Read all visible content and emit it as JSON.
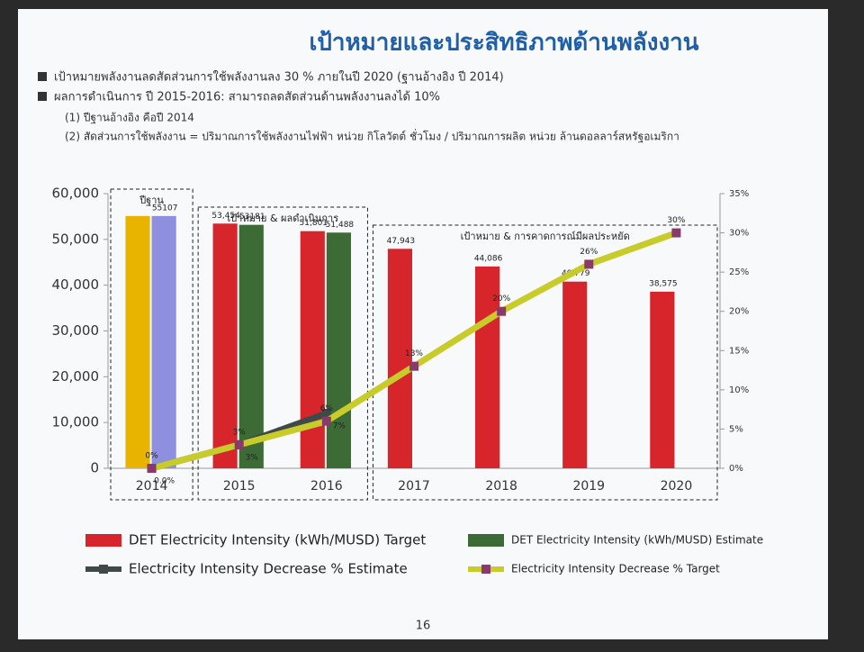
{
  "title": "เป้าหมายและประสิทธิภาพด้านพลังงาน",
  "bullets": [
    "เป้าหมายพลังงานลดสัดส่วนการใช้พลังงานลง 30 % ภายในปี 2020 (ฐานอ้างอิง ปี 2014)",
    "ผลการดำเนินการ ปี 2015-2016: สามารถลดสัดส่วนด้านพลังงานลงได้ 10%"
  ],
  "notes": [
    "(1) ปีฐานอ้างอิง คือปี 2014",
    "(2) สัดส่วนการใช้พลังงาน = ปริมาณการใช้พลังงานไฟฟ้า หน่วย กิโลวัตต์ ชั่วโมง / ปริมาณการผลิต หน่วย ล้านดอลลาร์สหรัฐอเมริกา"
  ],
  "page_number": "16",
  "chart_data": {
    "type": "bar",
    "categories": [
      "2014",
      "2015",
      "2016",
      "2017",
      "2018",
      "2019",
      "2020"
    ],
    "groups": [
      {
        "label": "ปีฐาน"
      },
      {
        "label": "เป้าหมาย & ผลดำเนินการ"
      },
      {
        "label": "เป้าหมาย & การคาดการณ์มีผลประหยัด"
      }
    ],
    "series": [
      {
        "name": "DET Electricity Intensity (kWh/MUSD) Target",
        "color": "#d7262b",
        "point_colors": [
          "#e8b400",
          "#d7262b",
          "#d7262b",
          "#d7262b",
          "#d7262b",
          "#d7262b",
          "#d7262b"
        ],
        "values": [
          55107,
          53454,
          51801,
          47943,
          44086,
          40779,
          38575
        ],
        "value_labels": [
          null,
          "53,454",
          "51,801",
          "47,943",
          "44,086",
          "40,779",
          "38,575"
        ]
      },
      {
        "name": "DET Electricity Intensity (kWh/MUSD) Estimate",
        "color": "#3d6b35",
        "point_colors": [
          "#8f8fe0",
          "#3d6b35",
          "#3d6b35",
          null,
          null,
          null,
          null
        ],
        "values": [
          55107,
          53181,
          51488,
          null,
          null,
          null,
          null
        ],
        "value_labels": [
          "55107",
          "53181",
          "51,488",
          null,
          null,
          null,
          null
        ]
      },
      {
        "name": "Electricity Intensity Decrease % Estimate",
        "color": "#3f4a48",
        "axis": "y2",
        "type": "line",
        "values": [
          0,
          3,
          7,
          null,
          null,
          null,
          null
        ],
        "value_labels": [
          "0.0%",
          "3%",
          "7%",
          null,
          null,
          null,
          null
        ]
      },
      {
        "name": "Electricity Intensity Decrease % Target",
        "color": "#c8cc2a",
        "marker_color": "#8a3a6a",
        "axis": "y2",
        "type": "line",
        "values": [
          0,
          3,
          6,
          13,
          20,
          26,
          30
        ],
        "value_labels": [
          "0%",
          "3%",
          "6%",
          "13%",
          "20%",
          "26%",
          "30%"
        ]
      }
    ],
    "ylim": [
      0,
      60000
    ],
    "yticks": [
      {
        "value": 0,
        "label": "0"
      },
      {
        "value": 10000,
        "label": "10,000"
      },
      {
        "value": 20000,
        "label": "20,000"
      },
      {
        "value": 30000,
        "label": "30,000"
      },
      {
        "value": 40000,
        "label": "40,000"
      },
      {
        "value": 50000,
        "label": "50,000"
      },
      {
        "value": 60000,
        "label": "60,000"
      }
    ],
    "y2lim": [
      0,
      35
    ],
    "y2ticks": [
      {
        "value": 0,
        "label": "0%"
      },
      {
        "value": 5,
        "label": "5%"
      },
      {
        "value": 10,
        "label": "10%"
      },
      {
        "value": 15,
        "label": "15%"
      },
      {
        "value": 20,
        "label": "20%"
      },
      {
        "value": 25,
        "label": "25%"
      },
      {
        "value": 30,
        "label": "30%"
      },
      {
        "value": 35,
        "label": "35%"
      }
    ]
  }
}
